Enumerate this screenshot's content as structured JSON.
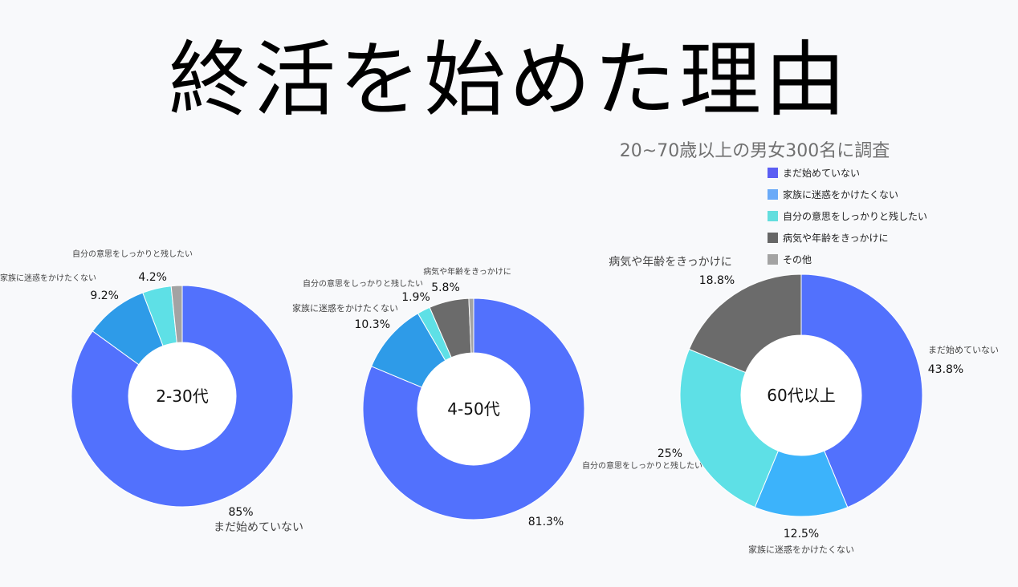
{
  "title": "終活を始めた理由",
  "subtitle": "20~70歳以上の男女300名に調査",
  "legend": [
    {
      "label": "まだ始めていない",
      "color": "#5b5ef3"
    },
    {
      "label": "家族に迷惑をかけたくない",
      "color": "#6aaaf8"
    },
    {
      "label": "自分の意思をしっかりと残したい",
      "color": "#63dede"
    },
    {
      "label": "病気や年齢をきっかけに",
      "color": "#666666"
    },
    {
      "label": "その他",
      "color": "#a3a3a3"
    }
  ],
  "chart_data": [
    {
      "type": "pie",
      "center_label": "2-30代",
      "categories": [
        "まだ始めていない",
        "家族に迷惑をかけたくない",
        "自分の意思をしっかりと残したい",
        "その他"
      ],
      "values": [
        85,
        9.2,
        4.2,
        1.6
      ],
      "value_labels": [
        "85%",
        "9.2%",
        "4.2%",
        ""
      ],
      "colors": [
        "#5271fd",
        "#2e9be8",
        "#5ee0e6",
        "#a3a3a3"
      ]
    },
    {
      "type": "pie",
      "center_label": "4-50代",
      "categories": [
        "まだ始めていない",
        "家族に迷惑をかけたくない",
        "自分の意思をしっかりと残したい",
        "病気や年齢をきっかけに",
        "その他"
      ],
      "values": [
        81.3,
        10.3,
        1.9,
        5.8,
        0.7
      ],
      "value_labels": [
        "81.3%",
        "10.3%",
        "1.9%",
        "5.8%",
        ""
      ],
      "colors": [
        "#5271fd",
        "#2e9be8",
        "#5ee0e6",
        "#6b6b6b",
        "#a3a3a3"
      ]
    },
    {
      "type": "pie",
      "center_label": "60代以上",
      "categories": [
        "まだ始めていない",
        "家族に迷惑をかけたくない",
        "自分の意思をしっかりと残したい",
        "病気や年齢をきっかけに"
      ],
      "values": [
        43.8,
        12.5,
        25,
        18.8
      ],
      "value_labels": [
        "43.8%",
        "12.5%",
        "25%",
        "18.8%"
      ],
      "colors": [
        "#5271fd",
        "#3cb3fb",
        "#5ee0e6",
        "#6b6b6b"
      ]
    }
  ]
}
